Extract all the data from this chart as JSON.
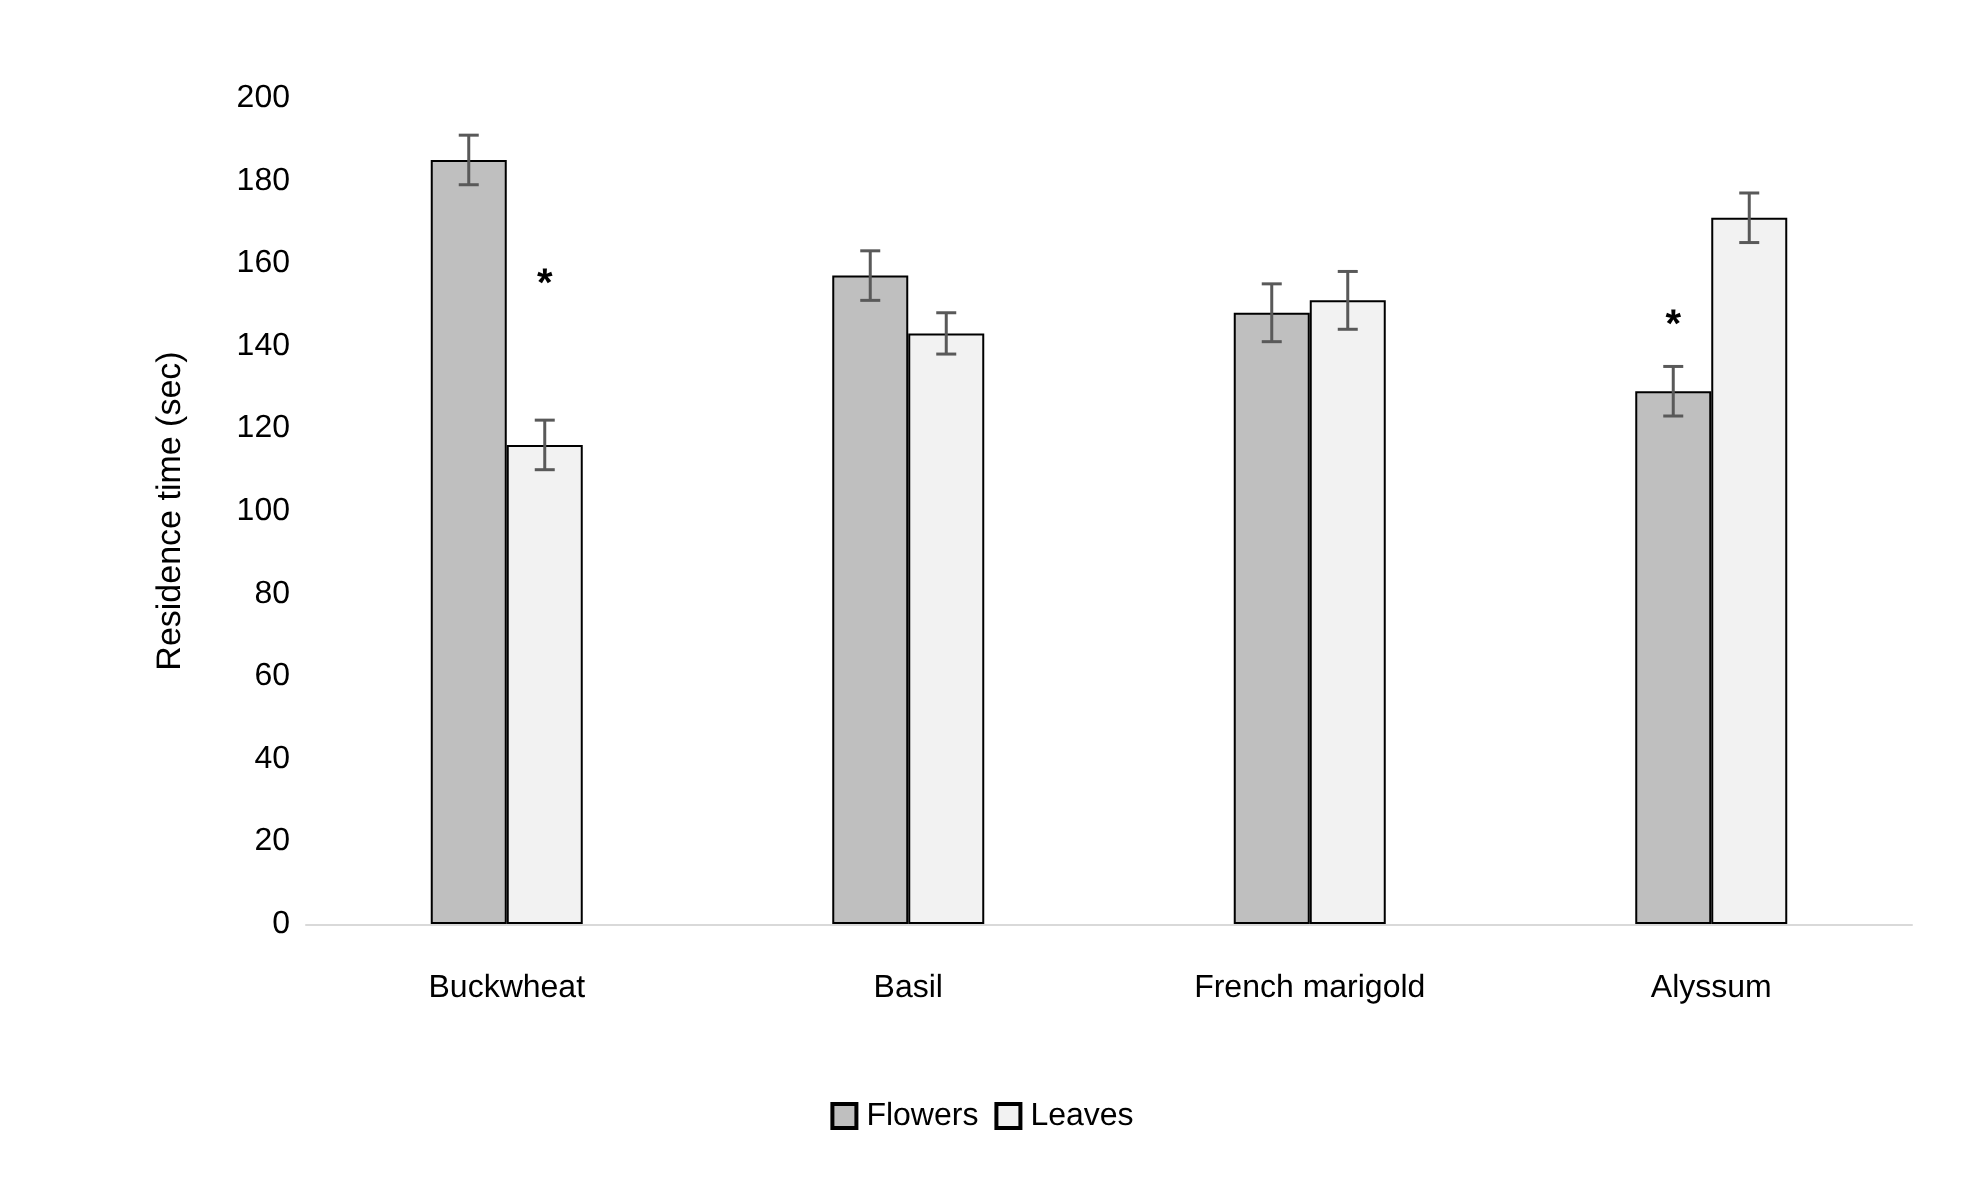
{
  "chart_data": {
    "type": "bar",
    "ylabel": "Residence time (sec)",
    "categories": [
      "Buckwheat",
      "Basil",
      "French marigold",
      "Alyssum"
    ],
    "series": [
      {
        "name": "Flowers",
        "color": "#bfbfbf",
        "values": [
          185,
          157,
          148,
          129
        ],
        "errors": [
          6,
          6,
          7,
          6
        ]
      },
      {
        "name": "Leaves",
        "color": "#f2f2f2",
        "values": [
          116,
          143,
          151,
          171
        ],
        "errors": [
          6,
          5,
          7,
          6
        ]
      }
    ],
    "ylim": [
      0,
      200
    ],
    "yticks": [
      0,
      20,
      40,
      60,
      80,
      100,
      120,
      140,
      160,
      180,
      200
    ],
    "grid": false,
    "legend": "bottom",
    "annotations": [
      {
        "text": "*",
        "x": "Buckwheat",
        "y": 155
      },
      {
        "text": "*",
        "x": "Alyssum",
        "y": 145
      }
    ]
  }
}
